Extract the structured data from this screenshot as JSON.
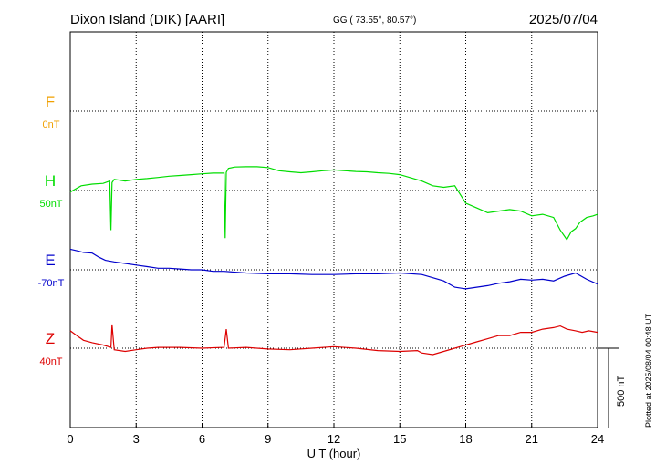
{
  "header": {
    "station": "Dixon Island (DIK)  [AARI]",
    "coords": "GG ( 73.55°,  80.57°)",
    "date": "2025/07/04"
  },
  "side_note": "Plotted at 2025/08/04 00:48 UT",
  "scale_bar_label": "500 nT",
  "colors": {
    "F": "#f0a000",
    "H": "#00dd00",
    "E": "#0000cc",
    "Z": "#dd0000"
  },
  "chart_data": {
    "type": "line",
    "xlabel": "U T (hour)",
    "x_ticks": [
      "0",
      "3",
      "6",
      "9",
      "12",
      "15",
      "18",
      "21",
      "24"
    ],
    "xlim": [
      0,
      24
    ],
    "grid": true,
    "series": [
      {
        "name": "F",
        "offset_label": "0nT",
        "x": [],
        "y": []
      },
      {
        "name": "H",
        "offset_label": "50nT",
        "x": [
          0,
          0.5,
          1,
          1.5,
          1.8,
          1.85,
          1.9,
          2,
          2.5,
          3,
          3.5,
          4,
          4.5,
          5,
          5.5,
          6,
          6.5,
          7,
          7.05,
          7.1,
          7.2,
          7.5,
          8,
          8.5,
          9,
          9.5,
          10,
          10.5,
          11,
          11.5,
          12,
          12.5,
          13,
          13.5,
          14,
          14.5,
          15,
          15.5,
          16,
          16.5,
          17,
          17.5,
          18,
          18.5,
          19,
          19.5,
          20,
          20.5,
          21,
          21.5,
          22,
          22.3,
          22.6,
          22.8,
          23,
          23.2,
          23.5,
          23.8,
          24
        ],
        "y": [
          -10,
          30,
          40,
          45,
          60,
          -250,
          50,
          70,
          60,
          70,
          75,
          82,
          90,
          95,
          100,
          105,
          110,
          110,
          -300,
          115,
          140,
          148,
          150,
          150,
          145,
          125,
          118,
          112,
          118,
          125,
          130,
          125,
          120,
          118,
          112,
          108,
          100,
          80,
          60,
          30,
          20,
          30,
          -80,
          -110,
          -140,
          -130,
          -120,
          -130,
          -160,
          -150,
          -170,
          -250,
          -310,
          -260,
          -240,
          -200,
          -170,
          -160,
          -150
        ]
      },
      {
        "name": "E",
        "offset_label": "-70nT",
        "x": [
          0,
          0.3,
          0.6,
          1,
          1.3,
          1.6,
          2,
          2.5,
          3,
          3.5,
          4,
          4.5,
          5,
          5.5,
          6,
          6.5,
          7,
          7.5,
          8,
          9,
          10,
          11,
          12,
          13,
          14,
          15,
          16,
          16.5,
          17,
          17.5,
          18,
          18.5,
          19,
          19.5,
          20,
          20.5,
          21,
          21.5,
          22,
          22.5,
          23,
          23.5,
          24
        ],
        "y": [
          130,
          120,
          110,
          105,
          80,
          60,
          50,
          40,
          30,
          20,
          10,
          10,
          5,
          0,
          0,
          -10,
          -10,
          -15,
          -20,
          -25,
          -25,
          -30,
          -30,
          -25,
          -25,
          -20,
          -30,
          -50,
          -70,
          -110,
          -120,
          -110,
          -100,
          -85,
          -75,
          -60,
          -65,
          -60,
          -70,
          -40,
          -20,
          -60,
          -90
        ]
      },
      {
        "name": "Z",
        "offset_label": "40nT",
        "x": [
          0,
          0.3,
          0.6,
          1,
          1.5,
          1.85,
          1.9,
          2,
          2.5,
          3,
          3.5,
          4,
          5,
          6,
          7,
          7.1,
          7.2,
          8,
          9,
          10,
          11,
          12,
          13,
          14,
          15,
          15.8,
          16,
          16.5,
          17,
          17.5,
          18,
          18.5,
          19,
          19.5,
          20,
          20.5,
          21,
          21.5,
          22,
          22.3,
          22.6,
          23,
          23.3,
          23.6,
          24
        ],
        "y": [
          110,
          80,
          50,
          35,
          20,
          5,
          150,
          -10,
          -20,
          -10,
          0,
          5,
          5,
          0,
          5,
          120,
          0,
          5,
          -5,
          -10,
          0,
          10,
          0,
          -15,
          -20,
          -15,
          -30,
          -40,
          -20,
          0,
          20,
          40,
          60,
          80,
          80,
          100,
          100,
          120,
          130,
          140,
          120,
          110,
          100,
          110,
          100
        ]
      }
    ]
  }
}
